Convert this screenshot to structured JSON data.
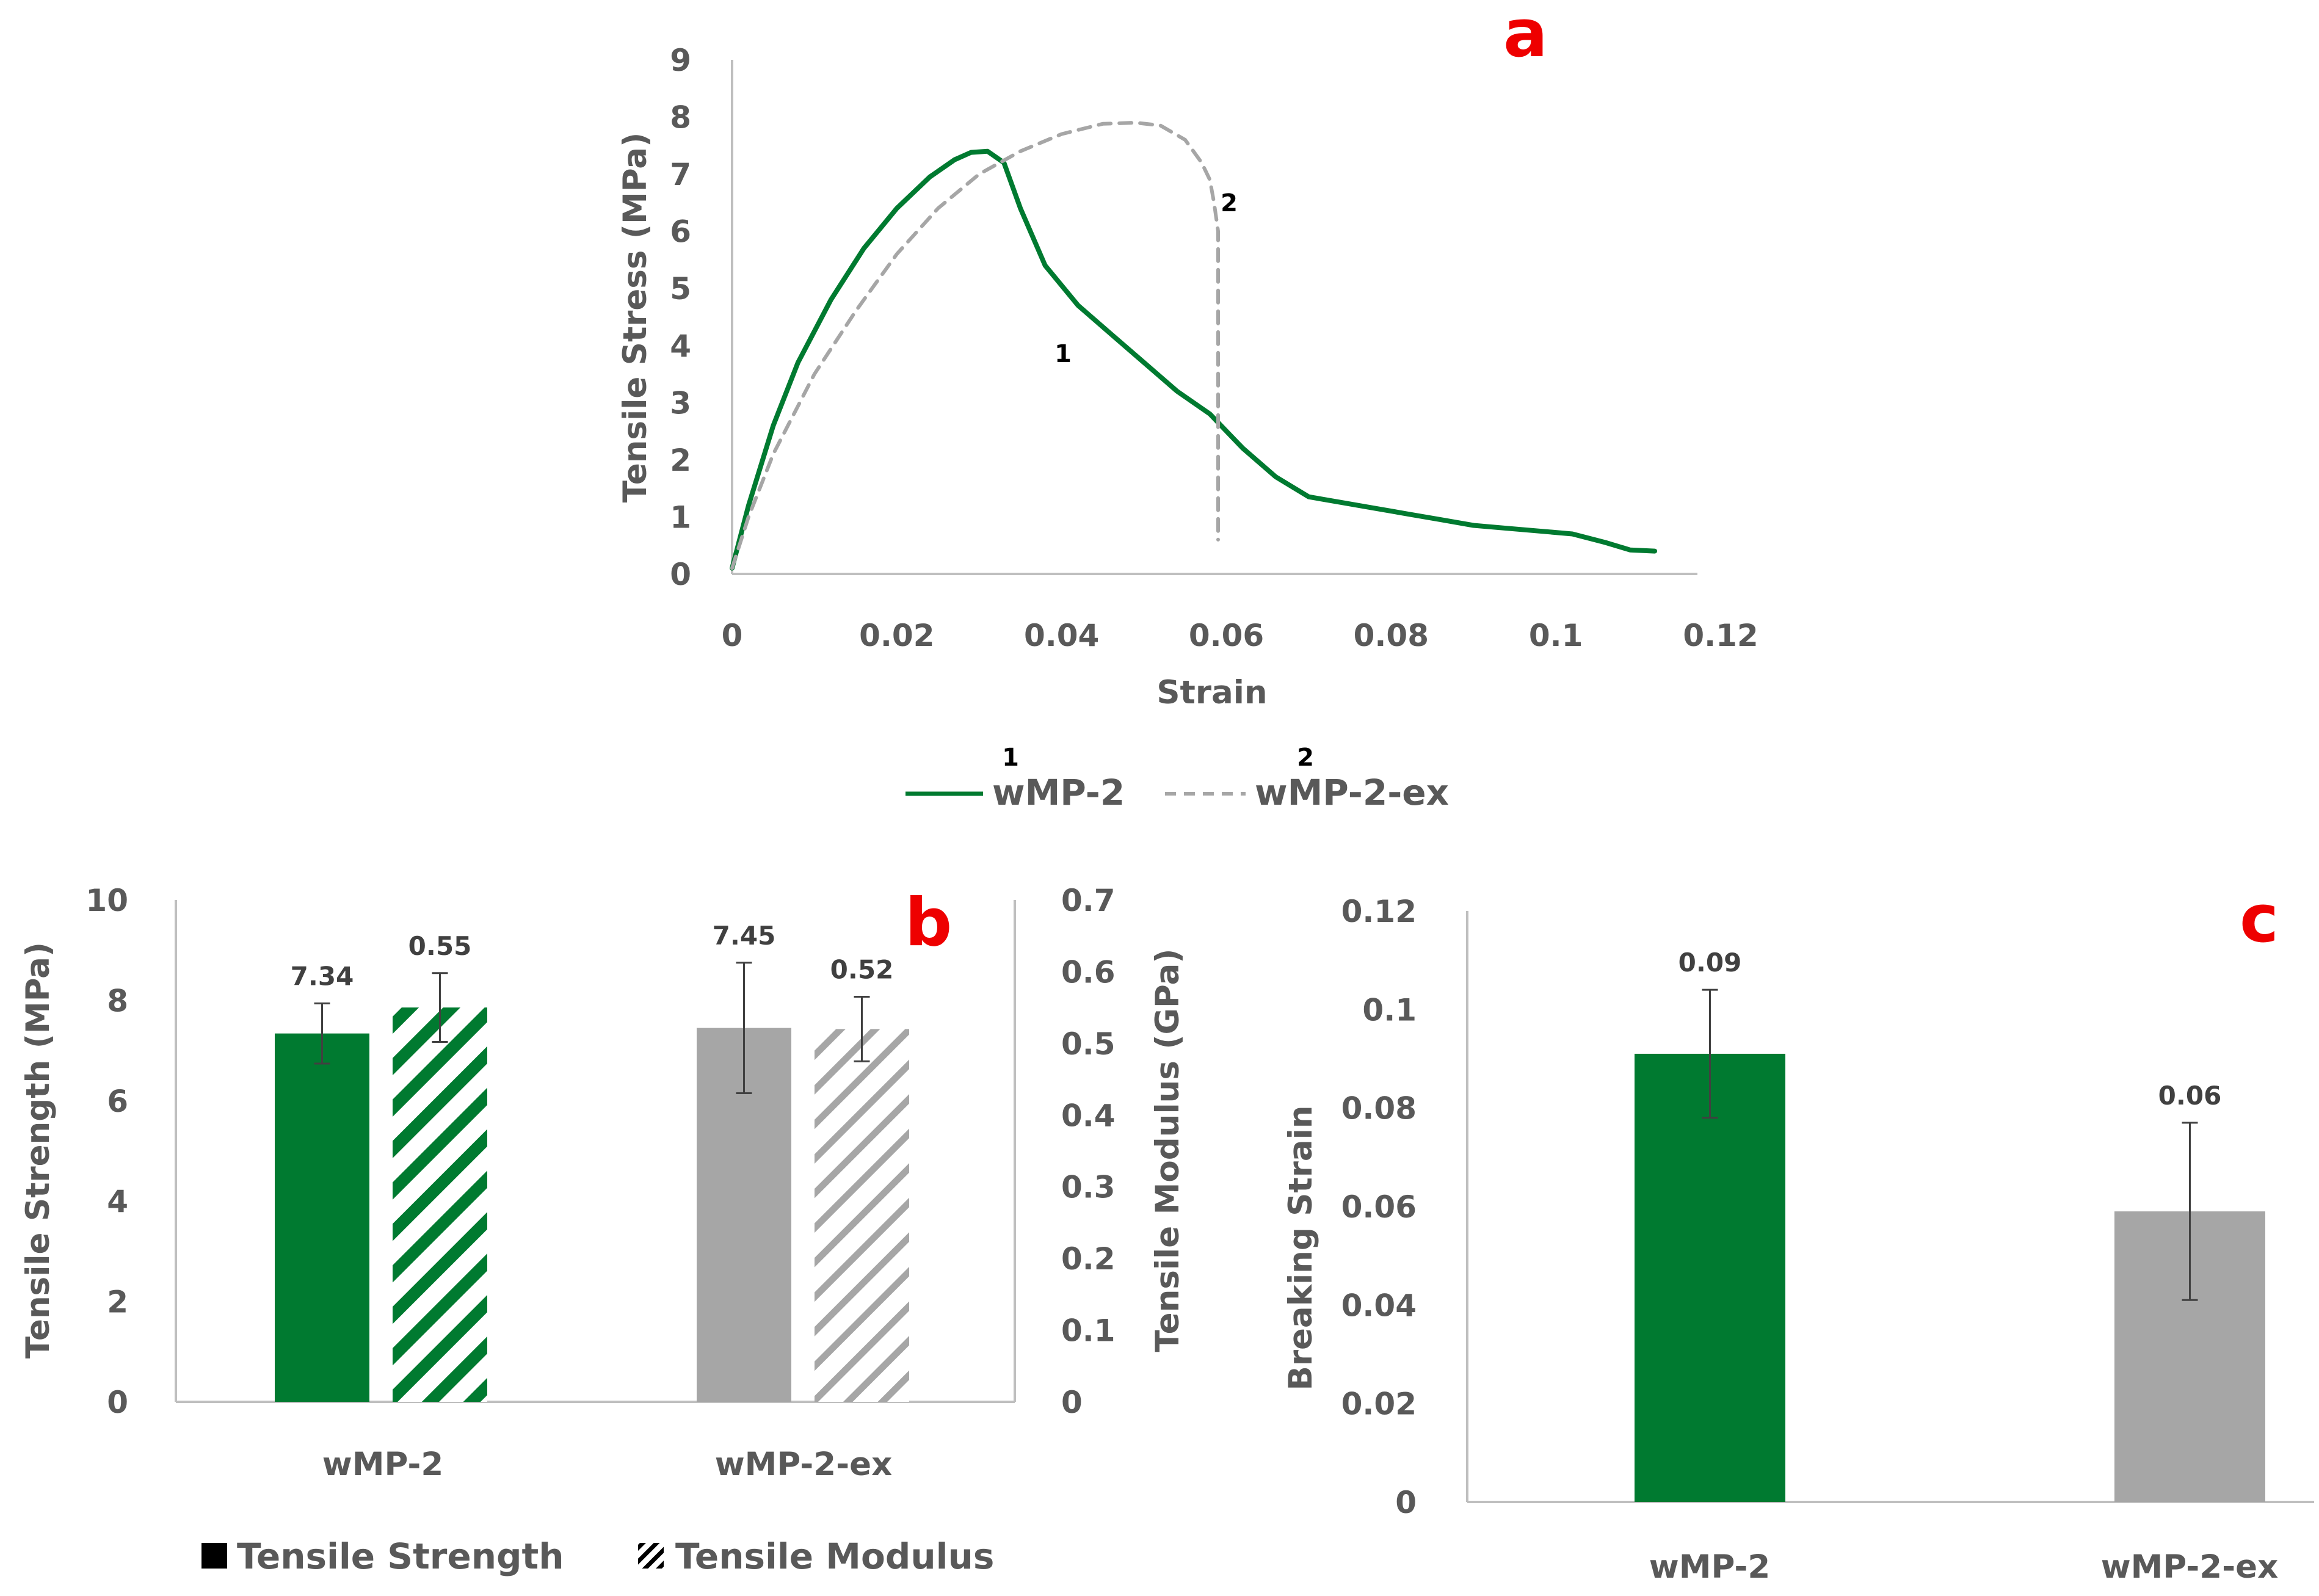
{
  "colors": {
    "green": "#007a30",
    "gray": "#a6a6a6",
    "axis": "#bfbfbf",
    "text": "#595959",
    "panel_letter": "#ee0000",
    "errorbar": "#404040"
  },
  "chart_data": [
    {
      "panel": "a",
      "type": "line",
      "xlabel": "Strain",
      "ylabel": "Tensile Stress (MPa)",
      "xlim": [
        0,
        0.12
      ],
      "ylim": [
        0,
        9
      ],
      "xticks": [
        "0",
        "0.02",
        "0.04",
        "0.06",
        "0.08",
        "0.1",
        "0.12"
      ],
      "yticks": [
        "0",
        "1",
        "2",
        "3",
        "4",
        "5",
        "6",
        "7",
        "8",
        "9"
      ],
      "grid": false,
      "legend_position": "bottom",
      "series": [
        {
          "name": "wMP-2",
          "marker": "1",
          "style": "solid",
          "color": "#007a30",
          "x": [
            0,
            0.002,
            0.005,
            0.008,
            0.012,
            0.016,
            0.02,
            0.024,
            0.027,
            0.029,
            0.031,
            0.033,
            0.035,
            0.038,
            0.042,
            0.046,
            0.05,
            0.054,
            0.058,
            0.062,
            0.066,
            0.07,
            0.074,
            0.078,
            0.082,
            0.086,
            0.09,
            0.094,
            0.098,
            0.102,
            0.106,
            0.109,
            0.112
          ],
          "y": [
            0.1,
            1.2,
            2.6,
            3.7,
            4.8,
            5.7,
            6.4,
            6.95,
            7.25,
            7.38,
            7.4,
            7.2,
            6.4,
            5.4,
            4.7,
            4.2,
            3.7,
            3.2,
            2.8,
            2.2,
            1.7,
            1.35,
            1.25,
            1.15,
            1.05,
            0.95,
            0.85,
            0.8,
            0.75,
            0.7,
            0.55,
            0.42,
            0.4
          ]
        },
        {
          "name": "wMP-2-ex",
          "marker": "2",
          "style": "dashed",
          "color": "#a6a6a6",
          "x": [
            0,
            0.002,
            0.005,
            0.01,
            0.015,
            0.02,
            0.025,
            0.03,
            0.035,
            0.04,
            0.045,
            0.049,
            0.052,
            0.055,
            0.057,
            0.058,
            0.0585,
            0.059,
            0.059,
            0.059
          ],
          "y": [
            0.1,
            1.0,
            2.1,
            3.5,
            4.6,
            5.6,
            6.4,
            7.0,
            7.4,
            7.7,
            7.88,
            7.9,
            7.85,
            7.6,
            7.2,
            6.9,
            6.5,
            6.0,
            3.0,
            0.6
          ]
        }
      ]
    },
    {
      "panel": "b",
      "type": "bar",
      "categories": [
        "wMP-2",
        "wMP-2-ex"
      ],
      "ylabel": "Tensile Strength (MPa)",
      "ylabel_right": "Tensile Modulus (GPa)",
      "ylim": [
        0,
        10
      ],
      "ylim_right": [
        0,
        0.7
      ],
      "yticks": [
        "0",
        "2",
        "4",
        "6",
        "8",
        "10"
      ],
      "yticks_right": [
        "0",
        "0.1",
        "0.2",
        "0.3",
        "0.4",
        "0.5",
        "0.6",
        "0.7"
      ],
      "legend_position": "bottom",
      "series": [
        {
          "name": "Tensile Strength",
          "axis": "left",
          "pattern": "solid",
          "values": [
            7.34,
            7.45
          ],
          "errors": [
            0.6,
            1.3
          ],
          "labels": [
            "7.34",
            "7.45"
          ],
          "colors": [
            "#007a30",
            "#a6a6a6"
          ]
        },
        {
          "name": "Tensile Modulus",
          "axis": "right",
          "pattern": "hatched",
          "values": [
            0.55,
            0.52
          ],
          "errors": [
            0.048,
            0.045
          ],
          "labels": [
            "0.55",
            "0.52"
          ],
          "colors": [
            "#007a30",
            "#a6a6a6"
          ]
        }
      ]
    },
    {
      "panel": "c",
      "type": "bar",
      "categories": [
        "wMP-2",
        "wMP-2-ex"
      ],
      "ylabel": "Breaking Strain",
      "ylim": [
        0,
        0.12
      ],
      "yticks": [
        "0",
        "0.02",
        "0.04",
        "0.06",
        "0.08",
        "0.1",
        "0.12"
      ],
      "values": [
        0.091,
        0.059
      ],
      "errors": [
        0.013,
        0.018
      ],
      "labels": [
        "0.09",
        "0.06"
      ],
      "colors": [
        "#007a30",
        "#a6a6a6"
      ]
    }
  ]
}
